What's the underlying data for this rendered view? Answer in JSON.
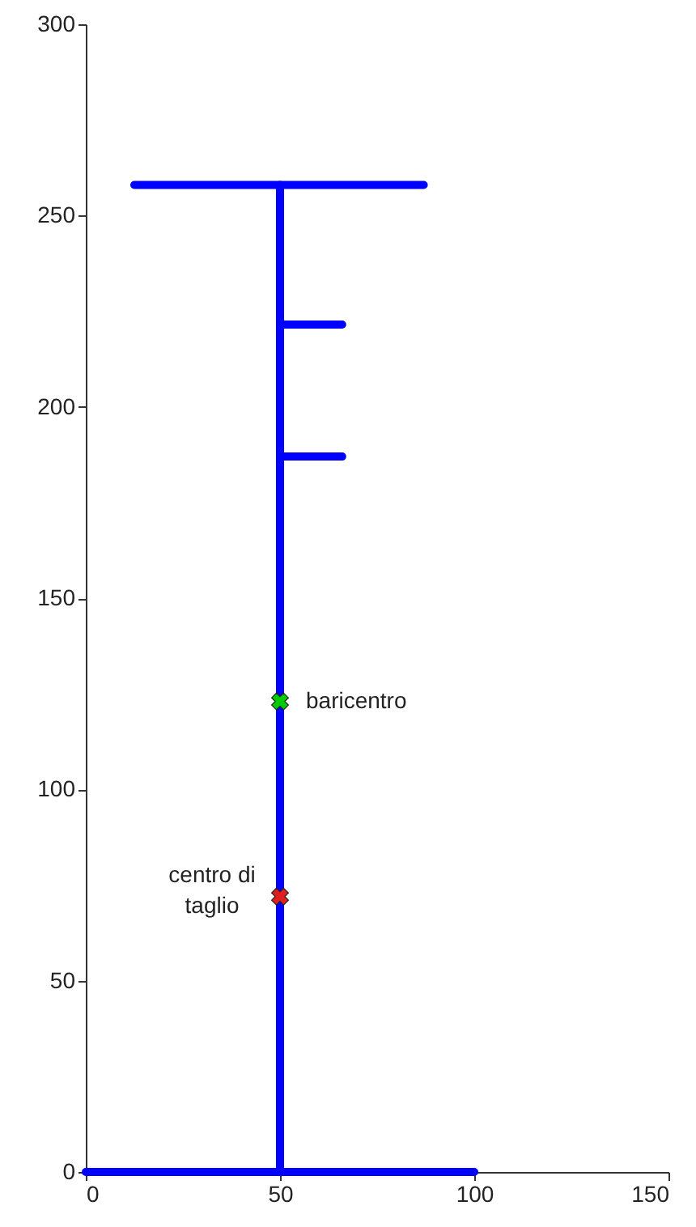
{
  "chart_data": {
    "type": "line",
    "xlim": [
      0,
      150
    ],
    "xticks": [
      0,
      50,
      100,
      150
    ],
    "ylim": [
      0,
      300
    ],
    "yticks": [
      0,
      50,
      100,
      150,
      200,
      250,
      300
    ],
    "grid": false,
    "line_style": "solid",
    "marker": "none",
    "series": [
      {
        "color": "#0000ff",
        "x": [
          0,
          100
        ],
        "values": [
          0,
          0
        ]
      },
      {
        "color": "#0000ff",
        "x": [
          50,
          50
        ],
        "values": [
          0,
          258
        ]
      },
      {
        "color": "#0000ff",
        "x": [
          12.5,
          87
        ],
        "values": [
          258,
          258
        ]
      },
      {
        "color": "#0000ff",
        "x": [
          50,
          66
        ],
        "values": [
          221.5,
          221.5
        ]
      },
      {
        "color": "#0000ff",
        "x": [
          50,
          66
        ],
        "values": [
          187,
          187
        ]
      },
      {
        "type": "scatter",
        "marker": "cross",
        "color": "#00cc00",
        "x": [
          50
        ],
        "values": [
          123
        ]
      },
      {
        "type": "scatter",
        "marker": "cross",
        "color": "#e02020",
        "x": [
          50
        ],
        "values": [
          72
        ]
      }
    ],
    "annotations": [
      {
        "text": "baricentro",
        "x": 50,
        "y": 123
      },
      {
        "text": "centro di\ntaglio",
        "x": 50,
        "y": 72
      }
    ]
  }
}
